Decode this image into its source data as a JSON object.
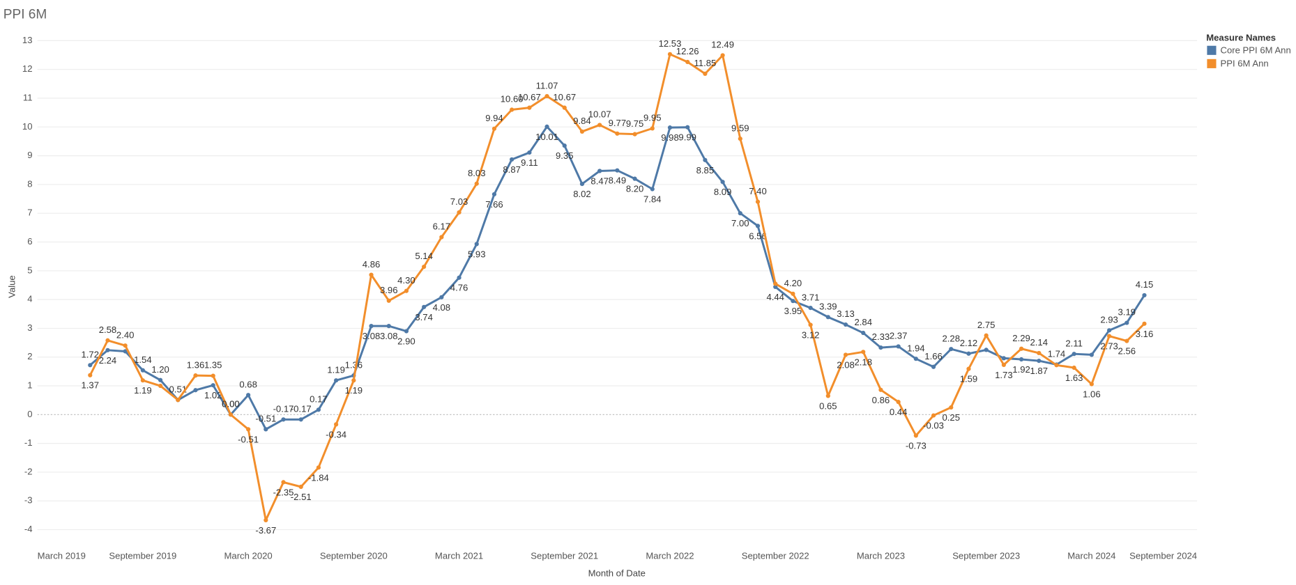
{
  "chart_data": {
    "type": "line",
    "title": "PPI 6M",
    "x_label": "Month of Date",
    "y_label": "Value",
    "legend_title": "Measure Names",
    "legend_position": "top-right",
    "grid": true,
    "x": [
      "2019-06",
      "2019-07",
      "2019-08",
      "2019-09",
      "2019-10",
      "2019-11",
      "2019-12",
      "2020-01",
      "2020-02",
      "2020-03",
      "2020-04",
      "2020-05",
      "2020-06",
      "2020-07",
      "2020-08",
      "2020-09",
      "2020-10",
      "2020-11",
      "2020-12",
      "2021-01",
      "2021-02",
      "2021-03",
      "2021-04",
      "2021-05",
      "2021-06",
      "2021-07",
      "2021-08",
      "2021-09",
      "2021-10",
      "2021-11",
      "2021-12",
      "2022-01",
      "2022-02",
      "2022-03",
      "2022-04",
      "2022-05",
      "2022-06",
      "2022-07",
      "2022-08",
      "2022-09",
      "2022-10",
      "2022-11",
      "2022-12",
      "2023-01",
      "2023-02",
      "2023-03",
      "2023-04",
      "2023-05",
      "2023-06",
      "2023-07",
      "2023-08",
      "2023-09",
      "2023-10",
      "2023-11",
      "2023-12",
      "2024-01",
      "2024-02",
      "2024-03",
      "2024-04",
      "2024-05",
      "2024-06"
    ],
    "xlim": [
      "2019-03",
      "2024-09"
    ],
    "xticks": [
      {
        "value": "2019-03",
        "label": "March 2019"
      },
      {
        "value": "2019-09",
        "label": "September 2019"
      },
      {
        "value": "2020-03",
        "label": "March 2020"
      },
      {
        "value": "2020-09",
        "label": "September 2020"
      },
      {
        "value": "2021-03",
        "label": "March 2021"
      },
      {
        "value": "2021-09",
        "label": "September 2021"
      },
      {
        "value": "2022-03",
        "label": "March 2022"
      },
      {
        "value": "2022-09",
        "label": "September 2022"
      },
      {
        "value": "2023-03",
        "label": "March 2023"
      },
      {
        "value": "2023-09",
        "label": "September 2023"
      },
      {
        "value": "2024-03",
        "label": "March 2024"
      },
      {
        "value": "2024-09",
        "label": "September 2024"
      }
    ],
    "ylim": [
      -4.5,
      13.4
    ],
    "yticks": [
      -4,
      -3,
      -2,
      -1,
      0,
      1,
      2,
      3,
      4,
      5,
      6,
      7,
      8,
      9,
      10,
      11,
      12,
      13
    ],
    "series": [
      {
        "name": "Core PPI  6M Ann",
        "color": "#4e79a7",
        "values": [
          1.72,
          2.24,
          2.2,
          1.54,
          1.2,
          0.51,
          0.85,
          1.02,
          0,
          0.68,
          -0.51,
          -0.17,
          -0.17,
          0.17,
          1.19,
          1.36,
          3.08,
          3.08,
          2.9,
          3.74,
          4.08,
          4.76,
          5.93,
          7.66,
          8.87,
          9.11,
          10.01,
          9.35,
          8.02,
          8.47,
          8.49,
          8.2,
          7.84,
          9.98,
          9.99,
          8.85,
          8.09,
          7,
          6.56,
          4.44,
          3.95,
          3.71,
          3.39,
          3.13,
          2.84,
          2.33,
          2.37,
          1.94,
          1.66,
          2.28,
          2.12,
          2.25,
          1.96,
          1.92,
          1.87,
          1.74,
          2.11,
          2.08,
          2.93,
          3.19,
          4.15
        ],
        "value_labels": [
          "1.72",
          "2.24",
          null,
          "1.54",
          "1.20",
          "0.51",
          null,
          "1.02",
          "0.00",
          "0.68",
          "-0.51",
          "-0.17",
          "-0.17",
          "0.17",
          "1.19",
          "1.36",
          "3.08",
          "3.08",
          "2.90",
          "3.74",
          "4.08",
          "4.76",
          "5.93",
          "7.66",
          "8.87",
          "9.11",
          "10.01",
          "9.35",
          "8.02",
          "8.47",
          "8.49",
          "8.20",
          "7.84",
          "9.98",
          "9.99",
          "8.85",
          "8.09",
          "7.00",
          "6.56",
          "4.44",
          "3.95",
          "3.71",
          "3.39",
          "3.13",
          "2.84",
          "2.33",
          "2.37",
          "1.94",
          "1.66",
          "2.28",
          "2.12",
          null,
          null,
          "1.92",
          "1.87",
          "1.74",
          "2.11",
          null,
          "2.93",
          "3.19",
          "4.15"
        ]
      },
      {
        "name": "PPI 6M Ann",
        "color": "#f28e2b",
        "values": [
          1.37,
          2.58,
          2.4,
          1.19,
          1.0,
          0.51,
          1.36,
          1.35,
          0,
          -0.51,
          -3.67,
          -2.35,
          -2.51,
          -1.84,
          -0.34,
          1.19,
          4.86,
          3.96,
          4.3,
          5.14,
          6.17,
          7.03,
          8.03,
          9.94,
          10.6,
          10.67,
          11.07,
          10.67,
          9.84,
          10.07,
          9.77,
          9.75,
          9.95,
          12.53,
          12.26,
          11.85,
          12.49,
          9.59,
          7.4,
          4.55,
          4.2,
          3.12,
          0.65,
          2.08,
          2.18,
          0.86,
          0.44,
          -0.73,
          -0.03,
          0.25,
          1.59,
          2.75,
          1.73,
          2.29,
          2.14,
          1.72,
          1.63,
          1.06,
          2.73,
          2.56,
          3.16
        ],
        "value_labels": [
          "1.37",
          "2.58",
          "2.40",
          "1.19",
          null,
          null,
          "1.36",
          "1.35",
          "0.00",
          "-0.51",
          "-3.67",
          "-2.35",
          "-2.51",
          "-1.84",
          "-0.34",
          "1.19",
          "4.86",
          "3.96",
          "4.30",
          "5.14",
          "6.17",
          "7.03",
          "8.03",
          "9.94",
          "10.60",
          "10.67",
          "11.07",
          "10.67",
          "9.84",
          "10.07",
          "9.77",
          "9.75",
          "9.95",
          "12.53",
          "12.26",
          "11.85",
          "12.49",
          "9.59",
          "7.40",
          null,
          "4.20",
          "3.12",
          "0.65",
          "2.08",
          "2.18",
          "0.86",
          "0.44",
          "-0.73",
          "-0.03",
          "0.25",
          "1.59",
          "2.75",
          "1.73",
          "2.29",
          "2.14",
          null,
          "1.63",
          "1.06",
          "2.73",
          "2.56",
          "3.16"
        ]
      }
    ]
  }
}
